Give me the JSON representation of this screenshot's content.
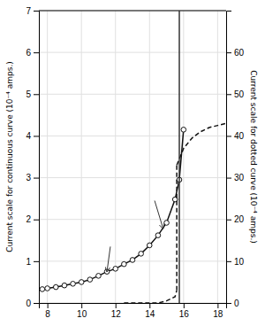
{
  "chart_data": {
    "type": "line",
    "y_label": "Current scale for continuous curve (10⁻⁴ amps.)",
    "y2_label": "Current scale for dotted curve (10⁻⁴ amps.)",
    "xlim": [
      7.5,
      18.5
    ],
    "ylim": [
      0,
      7
    ],
    "y2lim": [
      0,
      70
    ],
    "xticks": [
      8,
      10,
      12,
      14,
      16,
      18
    ],
    "yticks": [
      0,
      1,
      2,
      3,
      4,
      5,
      6,
      7
    ],
    "y2ticks": [
      0,
      10,
      20,
      30,
      40,
      50,
      60
    ],
    "grid": true,
    "series": [
      {
        "color": "#111111",
        "line_style": "solid",
        "marker": "circle",
        "x": [
          7.7,
          8.0,
          8.5,
          9.0,
          9.5,
          10.0,
          10.5,
          11.0,
          11.5,
          12.0,
          12.5,
          13.0,
          13.5,
          14.0,
          14.5,
          15.0,
          15.5,
          15.75,
          16.0
        ],
        "values": [
          0.33,
          0.35,
          0.38,
          0.42,
          0.46,
          0.5,
          0.56,
          0.65,
          0.75,
          0.82,
          0.93,
          1.03,
          1.18,
          1.38,
          1.62,
          1.92,
          2.48,
          2.95,
          4.15
        ]
      },
      {
        "color": "#111111",
        "line_style": "dashed",
        "axis": "y2",
        "x": [
          12.5,
          13.0,
          13.5,
          14.0,
          14.5,
          15.0,
          15.5,
          15.6
        ],
        "values": [
          0.0,
          0.0,
          0.0,
          0.0,
          0.0,
          0.5,
          1.5,
          3.0
        ]
      },
      {
        "color": "#111111",
        "line_style": "dashed",
        "axis": "y2",
        "x": [
          15.6,
          15.6
        ],
        "values": [
          3.0,
          33.0
        ]
      },
      {
        "color": "#111111",
        "line_style": "dashed",
        "axis": "y2",
        "x": [
          15.6,
          16.0,
          16.5,
          17.0,
          17.5,
          18.0,
          18.5
        ],
        "values": [
          33.0,
          37.0,
          39.5,
          41.0,
          42.0,
          42.5,
          43.0
        ]
      }
    ],
    "vlines": [
      15.75
    ],
    "arrows": [
      {
        "from": [
          11.7,
          1.35
        ],
        "to": [
          11.5,
          0.75
        ]
      },
      {
        "from": [
          14.3,
          2.45
        ],
        "to": [
          14.8,
          1.78
        ]
      }
    ]
  }
}
